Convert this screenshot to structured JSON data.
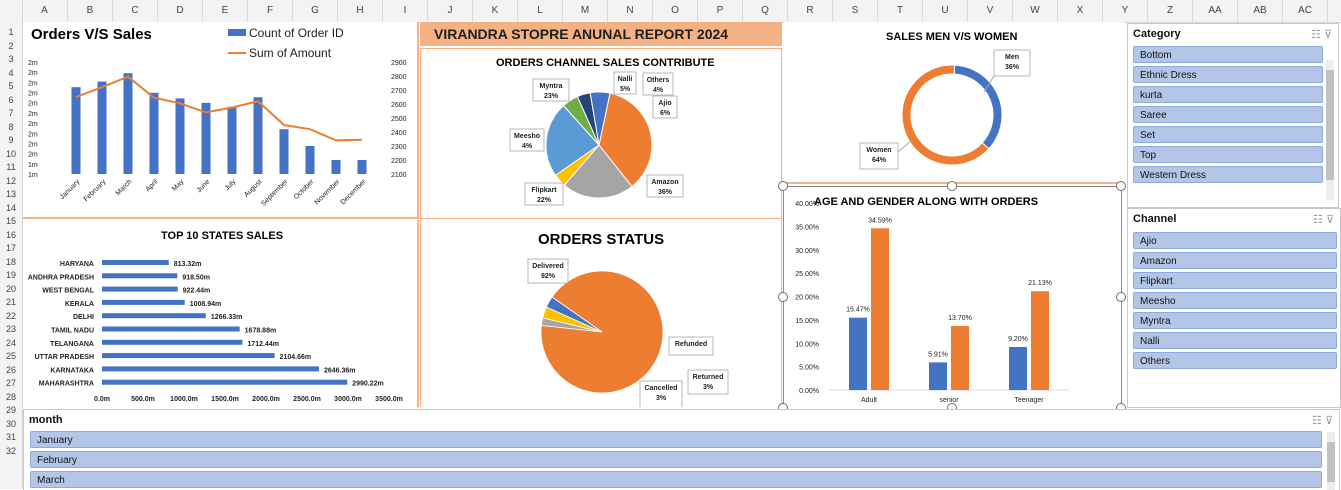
{
  "columns": [
    "A",
    "B",
    "C",
    "D",
    "E",
    "F",
    "G",
    "H",
    "I",
    "J",
    "K",
    "L",
    "M",
    "N",
    "O",
    "P",
    "Q",
    "R",
    "S",
    "T",
    "U",
    "V",
    "W",
    "X",
    "Y",
    "Z",
    "AA",
    "AB",
    "AC"
  ],
  "rows": [
    "1",
    "2",
    "3",
    "4",
    "5",
    "6",
    "7",
    "8",
    "9",
    "10",
    "11",
    "12",
    "13",
    "14",
    "15",
    "16",
    "17",
    "18",
    "19",
    "20",
    "21",
    "22",
    "23",
    "24",
    "25",
    "26",
    "27",
    "28",
    "29",
    "30",
    "31",
    "32"
  ],
  "banner": {
    "title": "VIRANDRA STOPRE ANUNAL REPORT 2024"
  },
  "colors": {
    "blue": "#4472c4",
    "orange": "#ed7d31",
    "banner_bg": "#f4b183",
    "slicer_item": "#b4c6e7",
    "grey": "#a5a5a5",
    "yellow": "#ffc000",
    "lightblue": "#5b9bd5",
    "green": "#70ad47",
    "navy": "#264478"
  },
  "orders_vs_sales": {
    "title": "Orders V/S Sales",
    "legend": [
      "Count of Order ID",
      "Sum of Amount"
    ],
    "chart_data": {
      "type": "bar",
      "categories": [
        "January",
        "February",
        "March",
        "April",
        "May",
        "June",
        "July",
        "August",
        "September",
        "October",
        "November",
        "December"
      ],
      "series": [
        {
          "name": "Count of Order ID",
          "type": "bar",
          "values": [
            2.45,
            2.55,
            2.7,
            2.35,
            2.25,
            2.17,
            2.1,
            2.27,
            1.7,
            1.4,
            1.15,
            1.15
          ]
        },
        {
          "name": "Sum of Amount",
          "type": "line",
          "values": [
            2650,
            2720,
            2795,
            2645,
            2605,
            2540,
            2575,
            2620,
            2450,
            2420,
            2340,
            2345
          ]
        }
      ],
      "y_left_ticks": [
        "1m",
        "1m",
        "2m",
        "2m",
        "2m",
        "2m",
        "2m",
        "2m",
        "2m",
        "2m",
        "2m",
        "2m"
      ],
      "y_right_ticks": [
        "2100",
        "2200",
        "2300",
        "2400",
        "2500",
        "2600",
        "2700",
        "2800",
        "2900"
      ],
      "y_right_range": [
        2100,
        2900
      ]
    }
  },
  "channel_pie": {
    "title": "ORDERS CHANNEL SALES CONTRIBUTE",
    "chart_data": {
      "type": "pie",
      "slices": [
        {
          "name": "Amazon",
          "value": 36,
          "label": "36%"
        },
        {
          "name": "Flipkart",
          "value": 22,
          "label": "22%"
        },
        {
          "name": "Meesho",
          "value": 4,
          "label": "4%"
        },
        {
          "name": "Myntra",
          "value": 23,
          "label": "23%"
        },
        {
          "name": "Nalli",
          "value": 5,
          "label": "5%"
        },
        {
          "name": "Others",
          "value": 4,
          "label": "4%"
        },
        {
          "name": "Ajio",
          "value": 6,
          "label": "6%"
        }
      ]
    }
  },
  "men_women": {
    "title": "SALES MEN V/S WOMEN",
    "chart_data": {
      "type": "pie",
      "slices": [
        {
          "name": "Men",
          "value": 36,
          "label": "36%"
        },
        {
          "name": "Women",
          "value": 64,
          "label": "64%"
        }
      ]
    }
  },
  "top_states": {
    "title": "TOP 10 STATES SALES",
    "chart_data": {
      "type": "bar",
      "orientation": "horizontal",
      "categories": [
        "HARYANA",
        "ANDHRA PRADESH",
        "WEST BENGAL",
        "KERALA",
        "DELHI",
        "TAMIL NADU",
        "TELANGANA",
        "UTTAR PRADESH",
        "KARNATAKA",
        "MAHARASHTRA"
      ],
      "values": [
        813.32,
        918.5,
        922.44,
        1008.94,
        1266.33,
        1678.88,
        1712.44,
        2104.66,
        2646.36,
        2990.22
      ],
      "labels": [
        "813.32m",
        "918.50m",
        "922.44m",
        "1008.94m",
        "1266.33m",
        "1678.88m",
        "1712.44m",
        "2104.66m",
        "2646.36m",
        "2990.22m"
      ],
      "x_ticks": [
        "0.0m",
        "500.0m",
        "1000.0m",
        "1500.0m",
        "2000.0m",
        "2500.0m",
        "3000.0m",
        "3500.0m"
      ],
      "xlim": [
        0,
        3500
      ]
    }
  },
  "order_status": {
    "title": "ORDERS STATUS",
    "chart_data": {
      "type": "pie",
      "slices": [
        {
          "name": "Delivered",
          "value": 92,
          "label": "92%"
        },
        {
          "name": "Refunded",
          "value": 2,
          "label": ""
        },
        {
          "name": "Returned",
          "value": 3,
          "label": "3%"
        },
        {
          "name": "Cancelled",
          "value": 3,
          "label": "3%"
        }
      ]
    }
  },
  "age_gender": {
    "title": "AGE AND GENDER ALONG WITH ORDERS",
    "chart_data": {
      "type": "bar",
      "categories": [
        "Adult",
        "senior",
        "Teenager"
      ],
      "series": [
        {
          "values": [
            15.47,
            5.91,
            9.2
          ],
          "labels": [
            "15.47%",
            "5.91%",
            "9.20%"
          ]
        },
        {
          "values": [
            34.59,
            13.7,
            21.13
          ],
          "labels": [
            "34.59%",
            "13.70%",
            "21.13%"
          ]
        }
      ],
      "y_ticks": [
        "0.00%",
        "5.00%",
        "10.00%",
        "15.00%",
        "20.00%",
        "25.00%",
        "30.00%",
        "35.00%",
        "40.00%"
      ],
      "ylim": [
        0,
        40
      ]
    }
  },
  "slicers": {
    "category": {
      "title": "Category",
      "items": [
        "Bottom",
        "Ethnic Dress",
        "kurta",
        "Saree",
        "Set",
        "Top",
        "Western Dress"
      ]
    },
    "channel": {
      "title": "Channel",
      "items": [
        "Ajio",
        "Amazon",
        "Flipkart",
        "Meesho",
        "Myntra",
        "Nalli",
        "Others"
      ]
    },
    "month": {
      "title": "month",
      "items": [
        "January",
        "February",
        "March"
      ]
    }
  },
  "icons": {
    "multiselect": "multi-select-icon",
    "clear_filter": "clear-filter-icon"
  }
}
